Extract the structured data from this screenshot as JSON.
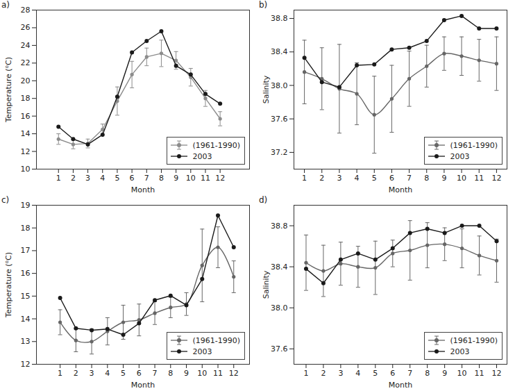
{
  "chart_data": [
    {
      "type": "line",
      "title": "a)",
      "x_label": "Month",
      "y_label": "Temperature (⁰C)",
      "x": [
        1,
        2,
        3,
        4,
        5,
        6,
        7,
        8,
        9,
        10,
        11,
        12
      ],
      "xlim": [
        -0.5,
        14
      ],
      "xticks": [
        1,
        2,
        3,
        4,
        5,
        6,
        7,
        8,
        9,
        10,
        11,
        12
      ],
      "ylim": [
        10,
        28
      ],
      "yticks": [
        10,
        12,
        14,
        16,
        18,
        20,
        22,
        24,
        26,
        28
      ],
      "legend": "bottom-right",
      "series": [
        {
          "name": "(1961-1990)",
          "color": "#8c8c8c",
          "marker": "circle",
          "line_style": "solid",
          "values": [
            13.4,
            12.8,
            12.9,
            14.5,
            17.7,
            20.7,
            22.7,
            23.1,
            22.3,
            20.4,
            18.0,
            15.7
          ],
          "error": [
            0.6,
            0.5,
            0.5,
            0.6,
            1.6,
            1.5,
            1.0,
            1.5,
            1.0,
            1.0,
            0.9,
            0.8
          ]
        },
        {
          "name": "2003",
          "color": "#1a1a1a",
          "marker": "circle",
          "line_style": "solid",
          "values": [
            14.8,
            13.4,
            12.8,
            13.9,
            18.2,
            23.2,
            24.5,
            25.6,
            21.7,
            20.7,
            18.5,
            17.4
          ]
        }
      ]
    },
    {
      "type": "line",
      "title": "b)",
      "x_label": "Month",
      "y_label": "Salinity",
      "x": [
        1,
        2,
        3,
        4,
        5,
        6,
        7,
        8,
        9,
        10,
        11,
        12
      ],
      "xlim": [
        0.4,
        12.6
      ],
      "xticks": [
        1,
        2,
        3,
        4,
        5,
        6,
        7,
        8,
        9,
        10,
        11,
        12
      ],
      "ylim": [
        37.0,
        38.9
      ],
      "yticks": [
        37.2,
        37.6,
        {
          "value": 38,
          "label": "38.0"
        },
        38.4,
        38.8
      ],
      "legend": "bottom-right",
      "series": [
        {
          "name": "(1961-1990)",
          "color": "#666666",
          "marker": "circle",
          "line_style": "smooth",
          "values": [
            38.16,
            38.08,
            37.96,
            37.9,
            37.65,
            37.84,
            38.08,
            38.23,
            38.38,
            38.35,
            38.3,
            38.26
          ],
          "error": [
            0.38,
            0.37,
            0.53,
            0.37,
            0.46,
            0.4,
            0.33,
            0.25,
            0.2,
            0.23,
            0.25,
            0.32
          ]
        },
        {
          "name": "2003",
          "color": "#1a1a1a",
          "marker": "circle",
          "line_style": "solid",
          "values": [
            38.33,
            38.04,
            37.98,
            38.24,
            38.25,
            38.43,
            38.45,
            38.53,
            38.78,
            38.83,
            38.68,
            38.68
          ]
        }
      ]
    },
    {
      "type": "line",
      "title": "c)",
      "x_label": "Month",
      "y_label": "Temperature (⁰C)",
      "x": [
        1,
        2,
        3,
        4,
        5,
        6,
        7,
        8,
        9,
        10,
        11,
        12
      ],
      "xlim": [
        -0.5,
        13
      ],
      "xticks": [
        1,
        2,
        3,
        4,
        5,
        6,
        7,
        8,
        9,
        10,
        11,
        12
      ],
      "ylim": [
        12,
        19
      ],
      "yticks": [
        12,
        13,
        14,
        15,
        16,
        17,
        18,
        19
      ],
      "legend": "bottom-right",
      "series": [
        {
          "name": "(1961-1990)",
          "color": "#666666",
          "marker": "circle",
          "line_style": "smooth",
          "values": [
            13.85,
            13.05,
            13.0,
            13.45,
            13.85,
            13.95,
            14.25,
            14.5,
            14.65,
            16.35,
            17.15,
            15.85
          ],
          "error": [
            0.55,
            0.5,
            0.55,
            0.6,
            0.75,
            0.7,
            0.5,
            0.45,
            0.5,
            1.6,
            0.9,
            0.7
          ]
        },
        {
          "name": "2003",
          "color": "#1a1a1a",
          "marker": "circle",
          "line_style": "solid",
          "values": [
            14.92,
            13.58,
            13.5,
            13.55,
            13.3,
            13.8,
            14.82,
            15.02,
            14.6,
            15.75,
            18.55,
            17.15
          ]
        }
      ]
    },
    {
      "type": "line",
      "title": "d)",
      "x_label": "Month",
      "y_label": "Salinity",
      "x": [
        1,
        2,
        3,
        4,
        5,
        6,
        7,
        8,
        9,
        10,
        11,
        12
      ],
      "xlim": [
        0.3,
        12.6
      ],
      "xticks": [
        1,
        2,
        3,
        4,
        5,
        6,
        7,
        8,
        9,
        10,
        11,
        12
      ],
      "ylim": [
        37.45,
        39.0
      ],
      "yticks": [
        37.6,
        {
          "value": 38,
          "label": "38.0"
        },
        38.4,
        38.8
      ],
      "legend": "bottom-right",
      "series": [
        {
          "name": "(1961-1990)",
          "color": "#666666",
          "marker": "circle",
          "line_style": "smooth",
          "values": [
            38.44,
            38.36,
            38.43,
            38.4,
            38.39,
            38.53,
            38.56,
            38.61,
            38.62,
            38.58,
            38.51,
            38.46
          ],
          "error": [
            0.27,
            0.25,
            0.21,
            0.2,
            0.26,
            0.13,
            0.29,
            0.22,
            0.16,
            0.19,
            0.19,
            0.21
          ]
        },
        {
          "name": "2003",
          "color": "#1a1a1a",
          "marker": "circle",
          "line_style": "solid",
          "values": [
            38.38,
            38.24,
            38.47,
            38.53,
            38.47,
            38.58,
            38.73,
            38.77,
            38.73,
            38.8,
            38.8,
            38.65
          ]
        }
      ]
    }
  ]
}
